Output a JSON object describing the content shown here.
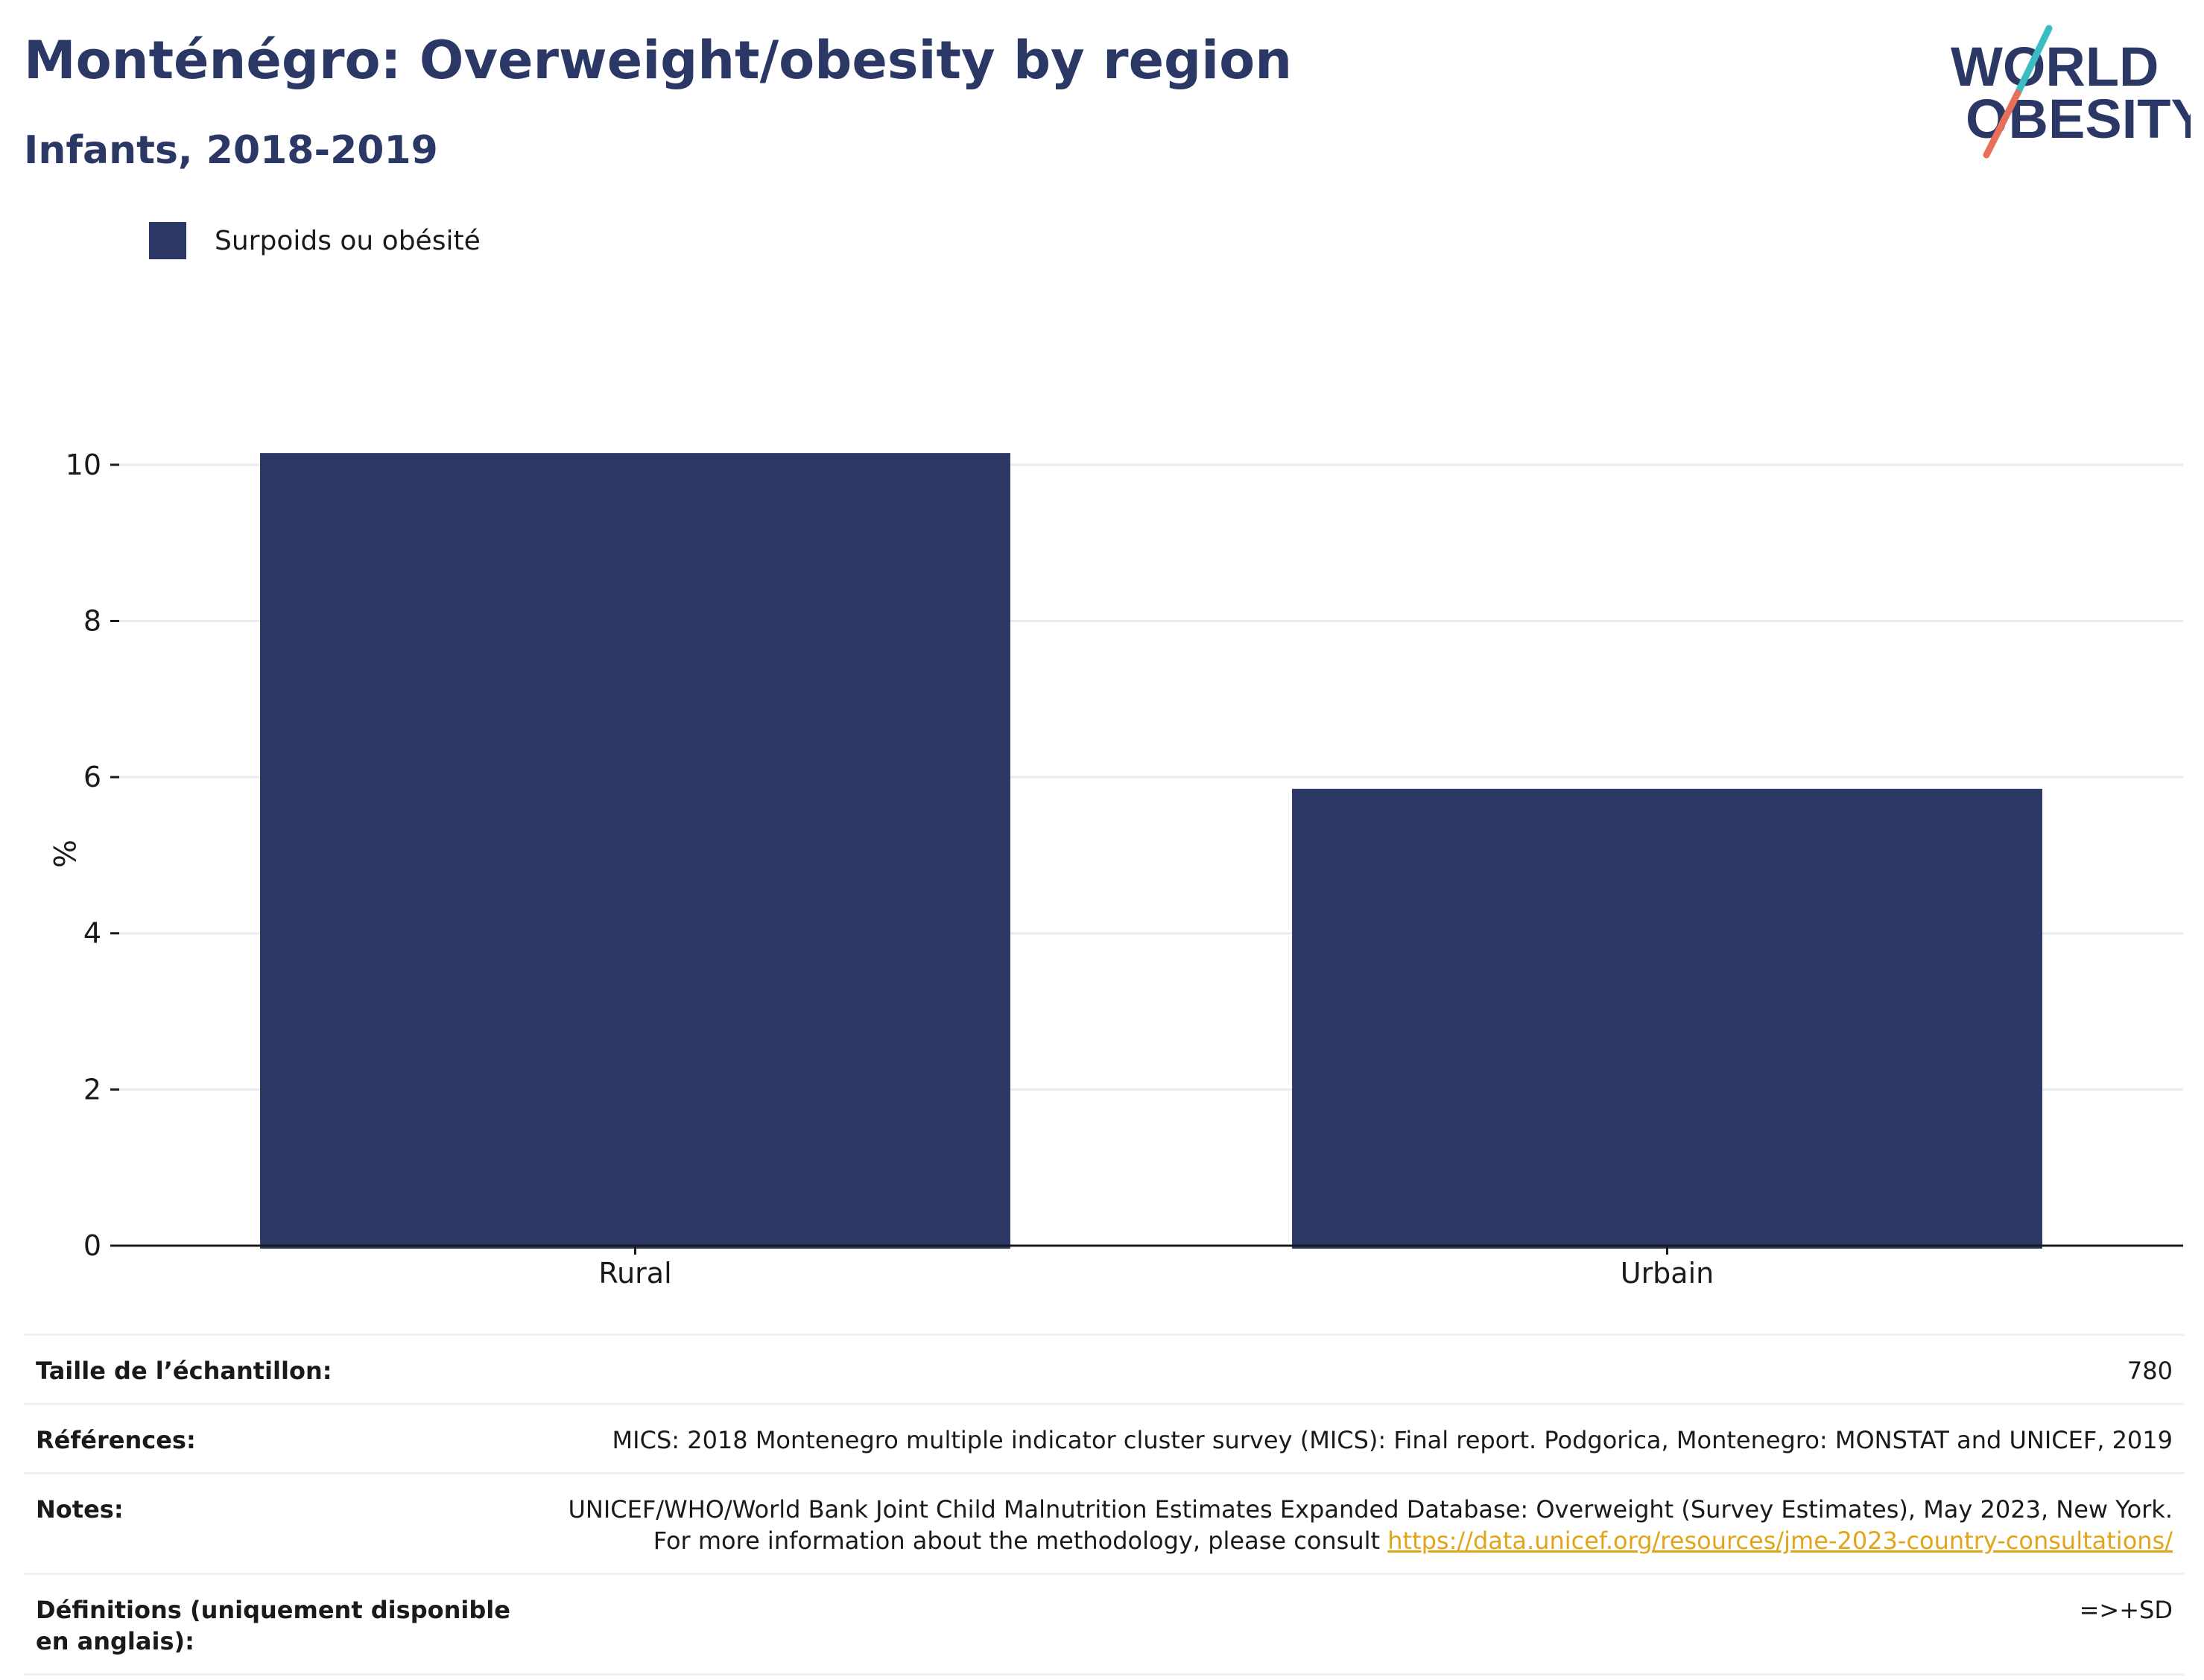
{
  "header": {
    "title": "Monténégro: Overweight/obesity by region",
    "subtitle": "Infants, 2018-2019"
  },
  "logo": {
    "line1": "WORLD",
    "line2": "OBESITY",
    "colors": {
      "text": "#2b3764",
      "slash_top": "#3cbcc3",
      "slash_bottom": "#e8705a"
    }
  },
  "legend": {
    "label": "Surpoids ou obésité",
    "color": "#2b3764"
  },
  "chart_data": {
    "type": "bar",
    "categories": [
      "Rural",
      "Urbain"
    ],
    "series": [
      {
        "name": "Surpoids ou obésité",
        "values": [
          10.15,
          5.85
        ],
        "color": "#2b3764"
      }
    ],
    "ylabel": "%",
    "ylim": [
      0,
      10.8
    ],
    "yticks": [
      0,
      2,
      4,
      6,
      8,
      10
    ],
    "grid": true,
    "legend_position": "top-left"
  },
  "info": {
    "sample": {
      "label": "Taille de l’échantillon:",
      "value": "780"
    },
    "references": {
      "label": "Références:",
      "value": "MICS: 2018 Montenegro multiple indicator cluster survey (MICS): Final report. Podgorica, Montenegro: MONSTAT and UNICEF, 2019"
    },
    "notes": {
      "label": "Notes:",
      "text": "UNICEF/WHO/World Bank Joint Child Malnutrition Estimates Expanded Database: Overweight (Survey Estimates), May 2023, New York. For more information about the methodology, please consult",
      "link": "https://data.unicef.org/resources/jme-2023-country-consultations/"
    },
    "definitions": {
      "label": "Définitions (uniquement disponible en anglais):",
      "value": "=>+SD"
    }
  }
}
